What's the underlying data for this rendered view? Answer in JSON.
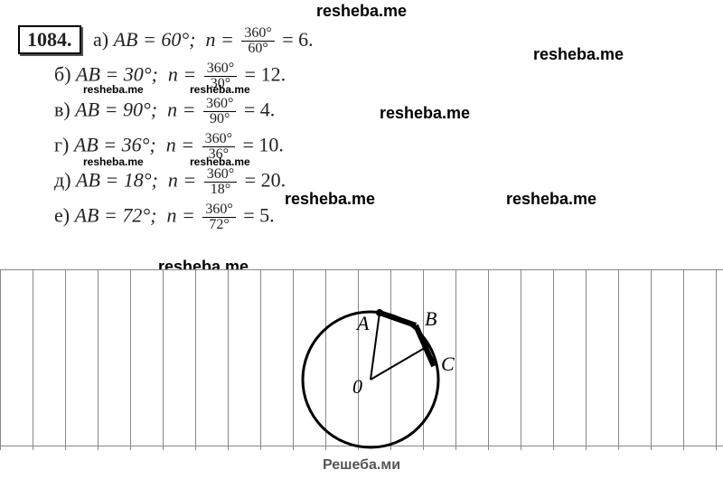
{
  "brand_header": "resheba.me",
  "problem_number": "1084.",
  "lines": {
    "a": {
      "letter": "а)",
      "arc": "AB = 60°;",
      "nlabel": "n =",
      "num": "360°",
      "den": "60°",
      "result": "= 6."
    },
    "b": {
      "letter": "б)",
      "arc": "AB = 30°;",
      "nlabel": "n =",
      "num": "360°",
      "den": "30°",
      "result": "= 12."
    },
    "v": {
      "letter": "в)",
      "arc": "AB = 90°;",
      "nlabel": "n =",
      "num": "360°",
      "den": "90°",
      "result": "= 4."
    },
    "g": {
      "letter": "г)",
      "arc": "AB = 36°;",
      "nlabel": "n =",
      "num": "360°",
      "den": "36°",
      "result": "= 10."
    },
    "d": {
      "letter": "д)",
      "arc": "AB = 18°;",
      "nlabel": "n =",
      "num": "360°",
      "den": "18°",
      "result": "= 20."
    },
    "e": {
      "letter": "е)",
      "arc": "AB = 72°;",
      "nlabel": "n =",
      "num": "360°",
      "den": "72°",
      "result": "= 5."
    }
  },
  "watermarks": {
    "w1": "resheba.me",
    "w2": "resheba.me",
    "w3": "resheba.me",
    "w4": "resheba.me",
    "w5": "resheba.me",
    "w6": "resheba.me",
    "w7": "resheba.me",
    "w8": "resheba.me",
    "w9": "resheba.me",
    "w10": "resheba.me",
    "w11": "resheba.me",
    "w12": "resheba.me",
    "w13": "resheba.me"
  },
  "diagram": {
    "labels": {
      "A": "A",
      "B": "B",
      "C": "C",
      "O": "0"
    },
    "circle_stroke": "#000000",
    "radius_stroke": "#000000",
    "chord_stroke": "#000000"
  },
  "footer": "Решеба.ми",
  "styling": {
    "page_bg": "#ffffff",
    "text_color": "#222222",
    "grid_color": "#888888",
    "font_body_pt": 22,
    "font_frac_pt": 16,
    "font_wm_small_pt": 12,
    "font_wm_big_pt": 18
  }
}
